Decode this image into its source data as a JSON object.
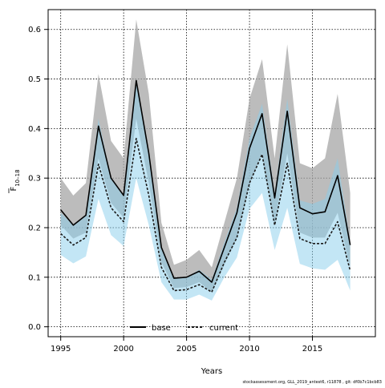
{
  "chart_data": {
    "type": "line",
    "xlabel": "Years",
    "ylabel": "F",
    "ylabel_sub": "10–18",
    "xlim": [
      1994,
      2020
    ],
    "ylim": [
      -0.02,
      0.64
    ],
    "xticks": [
      1995,
      2000,
      2005,
      2010,
      2015
    ],
    "yticks": [
      0.0,
      0.1,
      0.2,
      0.3,
      0.4,
      0.5,
      0.6
    ],
    "grid": true,
    "legend_position": "bottom-center",
    "x": [
      1995,
      1996,
      1997,
      1998,
      1999,
      2000,
      2001,
      2002,
      2003,
      2004,
      2005,
      2006,
      2007,
      2008,
      2009,
      2010,
      2011,
      2012,
      2013,
      2014,
      2015,
      2016,
      2017,
      2018
    ],
    "series": [
      {
        "name": "base",
        "line_style": "solid",
        "line_color": "#000000",
        "band_color": "#a6a6a6",
        "values": [
          0.236,
          0.205,
          0.225,
          0.405,
          0.3,
          0.265,
          0.497,
          0.35,
          0.16,
          0.098,
          0.1,
          0.112,
          0.09,
          0.16,
          0.23,
          0.36,
          0.43,
          0.26,
          0.435,
          0.24,
          0.228,
          0.232,
          0.305,
          0.165
        ],
        "upper": [
          0.3,
          0.265,
          0.29,
          0.51,
          0.375,
          0.34,
          0.62,
          0.47,
          0.21,
          0.125,
          0.135,
          0.155,
          0.12,
          0.21,
          0.3,
          0.46,
          0.54,
          0.34,
          0.57,
          0.33,
          0.32,
          0.34,
          0.47,
          0.27
        ],
        "lower": [
          0.205,
          0.178,
          0.19,
          0.34,
          0.25,
          0.22,
          0.42,
          0.29,
          0.13,
          0.078,
          0.08,
          0.09,
          0.07,
          0.125,
          0.18,
          0.29,
          0.35,
          0.21,
          0.35,
          0.19,
          0.18,
          0.18,
          0.23,
          0.12
        ]
      },
      {
        "name": "current",
        "line_style": "dashed",
        "line_color": "#1a1a1a",
        "band_color": "#87ceeb",
        "values": [
          0.188,
          0.165,
          0.18,
          0.328,
          0.24,
          0.212,
          0.38,
          0.265,
          0.12,
          0.073,
          0.075,
          0.085,
          0.07,
          0.13,
          0.18,
          0.29,
          0.348,
          0.205,
          0.33,
          0.178,
          0.168,
          0.168,
          0.212,
          0.113
        ],
        "upper": [
          0.23,
          0.205,
          0.225,
          0.42,
          0.3,
          0.265,
          0.5,
          0.345,
          0.16,
          0.1,
          0.1,
          0.115,
          0.095,
          0.17,
          0.24,
          0.38,
          0.45,
          0.27,
          0.46,
          0.255,
          0.248,
          0.258,
          0.34,
          0.17
        ],
        "lower": [
          0.145,
          0.128,
          0.142,
          0.258,
          0.185,
          0.163,
          0.3,
          0.205,
          0.09,
          0.055,
          0.055,
          0.065,
          0.053,
          0.1,
          0.14,
          0.238,
          0.27,
          0.155,
          0.24,
          0.127,
          0.118,
          0.115,
          0.135,
          0.073
        ]
      }
    ]
  },
  "footer_text": "stockassessment.org, GLL_2019_antest6, r11878 , git: df0b7c1bcb83"
}
